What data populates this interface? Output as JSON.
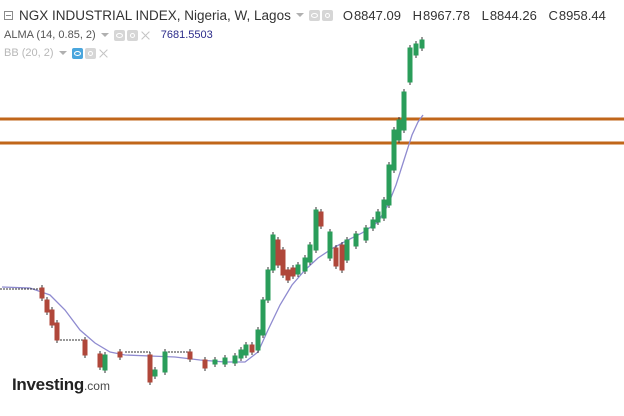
{
  "header": {
    "symbol": "NGX INDUSTRIAL INDEX, Nigeria, W, Lagos",
    "ohlc": [
      {
        "key": "O",
        "value": "8847.09"
      },
      {
        "key": "H",
        "value": "8967.78"
      },
      {
        "key": "L",
        "value": "8844.26"
      },
      {
        "key": "C",
        "value": "8958.44"
      }
    ]
  },
  "indicators": {
    "alma": {
      "label": "ALMA (14, 0.85, 2)",
      "value": "7681.5503"
    },
    "bb": {
      "label": "BB (20, 2)"
    }
  },
  "branding": {
    "logo_main": "Investing",
    "logo_suffix": ".com"
  },
  "colors": {
    "up": "#2a9d5a",
    "down": "#b0473a",
    "neutral": "#333333",
    "ma_line": "#8f8bd0",
    "hline": "#c0661a"
  },
  "icons": [
    "collapse-icon",
    "caret-down-icon",
    "eye-icon",
    "gear-icon",
    "close-icon"
  ]
}
